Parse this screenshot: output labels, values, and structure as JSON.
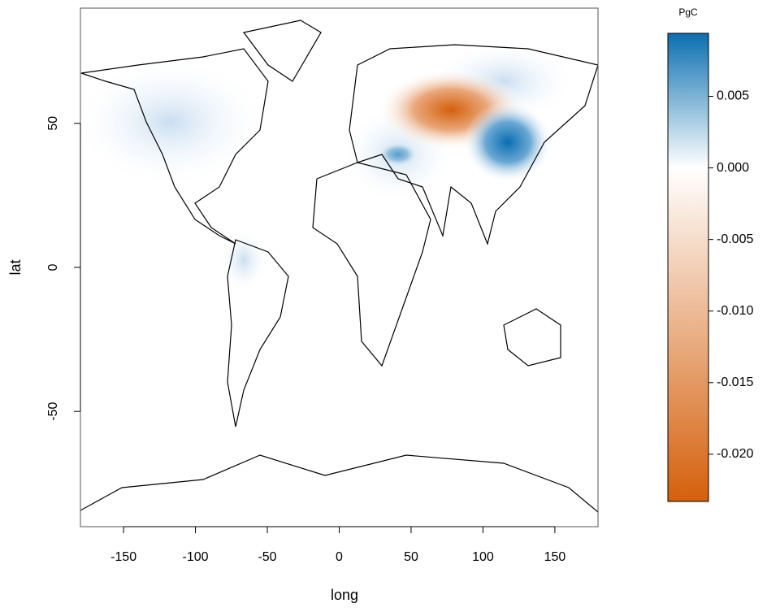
{
  "chart_data": {
    "type": "map",
    "x_label": "long",
    "y_label": "lat",
    "xlim": [
      -180,
      180
    ],
    "xticks": [
      -150,
      -100,
      -50,
      0,
      50,
      100,
      150
    ],
    "ylim": [
      -90,
      90
    ],
    "yticks": [
      -50,
      0,
      50
    ],
    "colorbar": {
      "title": "PgC",
      "lim": [
        -0.0233,
        0.0094
      ],
      "ticks": [
        {
          "value": 0.005,
          "label": "0.005"
        },
        {
          "value": 0,
          "label": "0.000"
        },
        {
          "value": -0.005,
          "label": "-0.005"
        },
        {
          "value": -0.01,
          "label": "-0.010"
        },
        {
          "value": -0.015,
          "label": "-0.015"
        },
        {
          "value": -0.02,
          "label": "-0.020"
        }
      ],
      "colors": [
        "#d4600c",
        "#ffffff",
        "#0a6fb0"
      ]
    }
  }
}
